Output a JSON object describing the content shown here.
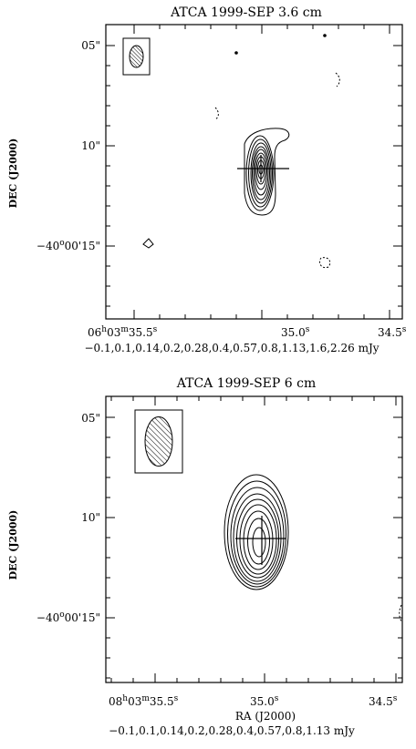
{
  "panels": [
    {
      "title": "ATCA  1999-SEP  3.6 cm",
      "y_axis_label": "DEC (J2000)",
      "y_ticks": [
        "05\"",
        "10\"",
        "-40°00'15\""
      ],
      "x_ticks": [
        "06h03m35.5s",
        "35.0s",
        "34.5s"
      ],
      "x_axis_label": "",
      "contour_levels": "-0.1,0.1,0.14,0.2,0.28,0.4,0.57,0.8,1.13,1.6,2.26 mJy"
    },
    {
      "title": "ATCA  1999-SEP  6 cm",
      "y_axis_label": "DEC (J2000)",
      "y_ticks": [
        "05\"",
        "10\"",
        "-40°00'15\""
      ],
      "x_ticks": [
        "08h03m35.5s",
        "35.0s",
        "34.5s"
      ],
      "x_axis_label": "RA (J2000)",
      "contour_levels": "-0.1,0.1,0.14,0.2,0.28,0.4,0.57,0.8,1.13 mJy"
    }
  ],
  "text": {
    "top_title": "ATCA  1999-SEP  3.6 cm",
    "top_ylabel": "DEC (J2000)",
    "top_ytick_05": "05\"",
    "top_ytick_10": "10\"",
    "top_ytick_15_main": "−40",
    "top_ytick_15_o": "o",
    "top_ytick_15_rest": "00'15\"",
    "top_xtick_1_a": "06",
    "top_xtick_1_h": "h",
    "top_xtick_1_b": "03",
    "top_xtick_1_m": "m",
    "top_xtick_1_c": "35.5",
    "top_xtick_1_s": "s",
    "top_xtick_2": "35.0",
    "top_xtick_2_s": "s",
    "top_xtick_3": "34.5",
    "top_xtick_3_s": "s",
    "top_levels": "−0.1,0.1,0.14,0.2,0.28,0.4,0.57,0.8,1.13,1.6,2.26 mJy",
    "bot_title": "ATCA  1999-SEP  6 cm",
    "bot_ylabel": "DEC (J2000)",
    "bot_ytick_05": "05\"",
    "bot_ytick_10": "10\"",
    "bot_ytick_15_main": "−40",
    "bot_ytick_15_o": "o",
    "bot_ytick_15_rest": "00'15\"",
    "bot_xtick_1_a": "08",
    "bot_xtick_1_h": "h",
    "bot_xtick_1_b": "03",
    "bot_xtick_1_m": "m",
    "bot_xtick_1_c": "35.5",
    "bot_xtick_1_s": "s",
    "bot_xtick_2": "35.0",
    "bot_xtick_2_s": "s",
    "bot_xtick_3": "34.5",
    "bot_xtick_3_s": "s",
    "bot_xlabel": "RA (J2000)",
    "bot_levels": "−0.1,0.1,0.14,0.2,0.28,0.4,0.57,0.8,1.13 mJy"
  },
  "colors": {
    "ink": "#000000",
    "background": "#ffffff"
  }
}
